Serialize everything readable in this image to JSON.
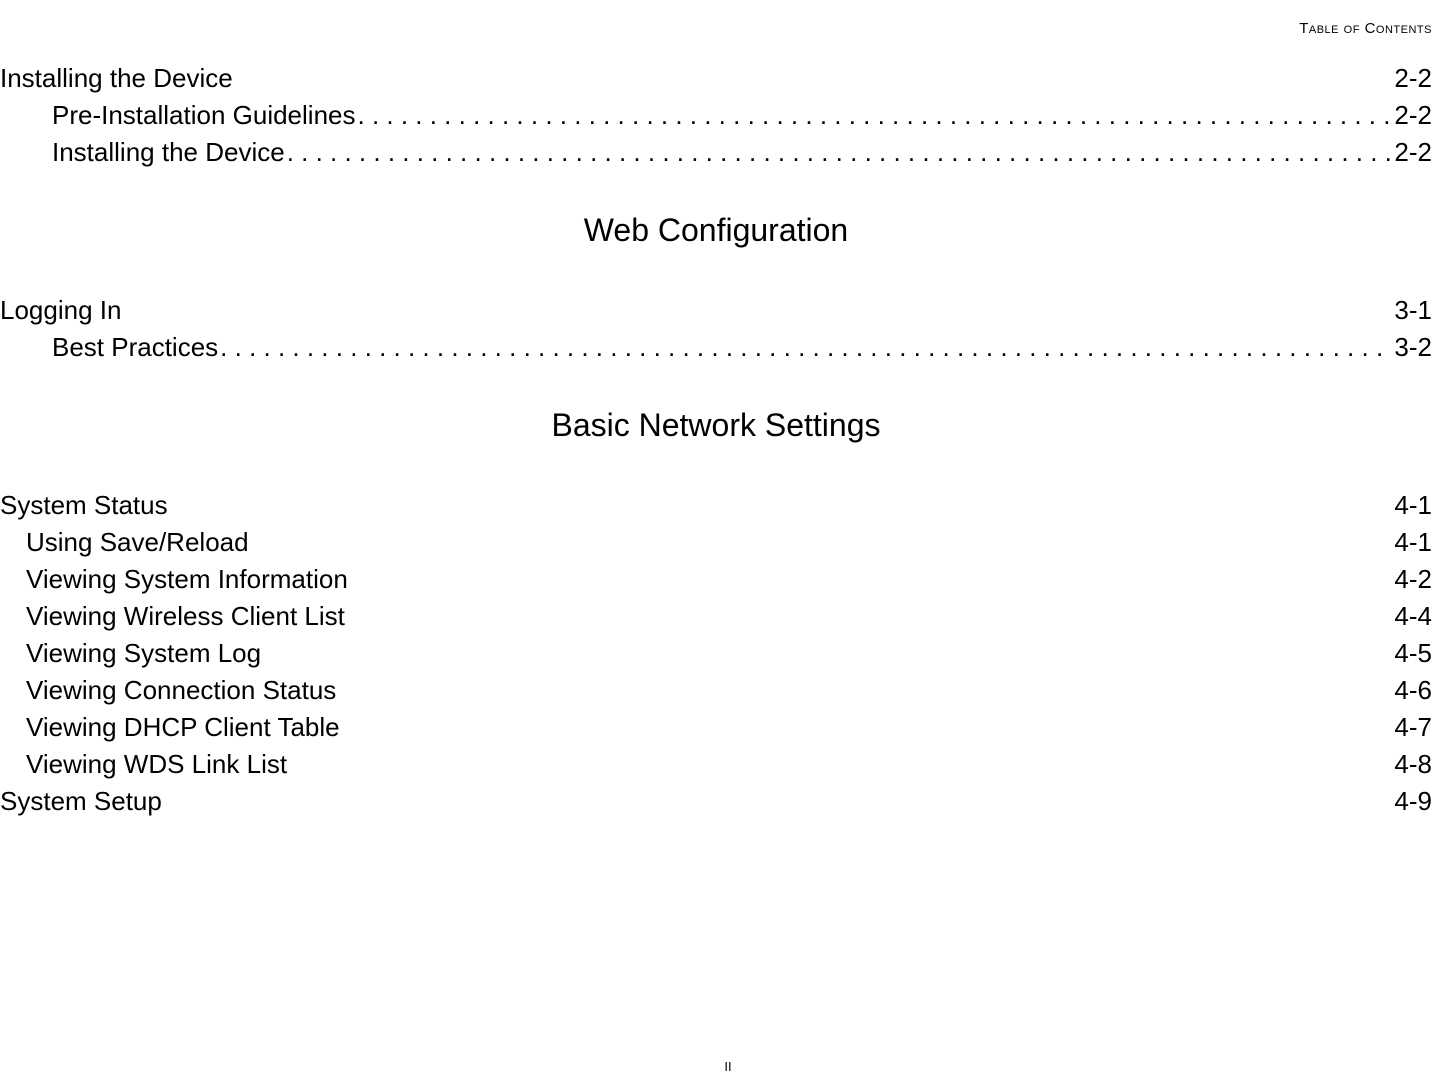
{
  "header": {
    "title": "Table of Contents"
  },
  "chapters": {
    "installing": {
      "title": "Installing the Device",
      "page": "2-2"
    },
    "logging": {
      "title": "Logging In",
      "page": "3-1"
    },
    "system_status": {
      "title": "System Status",
      "page": "4-1"
    },
    "system_setup": {
      "title": "System Setup",
      "page": "4-9"
    }
  },
  "subs": {
    "pre_install": {
      "title": "Pre-Installation Guidelines",
      "page": "2-2"
    },
    "install_device": {
      "title": "Installing the Device",
      "page": "2-2"
    },
    "best_practices": {
      "title": "Best Practices",
      "page": "3-2"
    }
  },
  "subs2": {
    "save_reload": {
      "title": "Using Save/Reload",
      "page": "4-1"
    },
    "sys_info": {
      "title": "Viewing System Information",
      "page": "4-2"
    },
    "wireless_clients": {
      "title": "Viewing Wireless Client List",
      "page": "4-4"
    },
    "system_log": {
      "title": "Viewing System Log",
      "page": "4-5"
    },
    "conn_status": {
      "title": "Viewing Connection Status",
      "page": "4-6"
    },
    "dhcp_table": {
      "title": "Viewing DHCP Client Table",
      "page": "4-7"
    },
    "wds_link": {
      "title": "Viewing WDS Link List",
      "page": "4-8"
    }
  },
  "sections": {
    "web_config": "Web Configuration",
    "basic_network": "Basic Network Settings"
  },
  "footer": {
    "page_number": "II"
  }
}
